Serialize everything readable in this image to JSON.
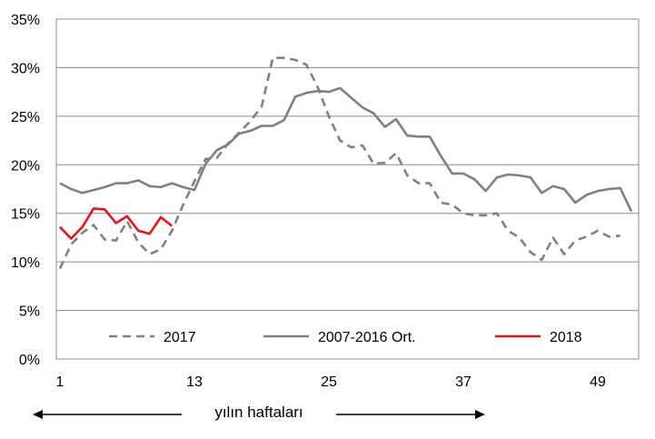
{
  "chart_data": {
    "type": "line",
    "xlabel": "yılın haftaları",
    "ylabel": "",
    "title": "",
    "xticks": [
      1,
      13,
      25,
      37,
      49
    ],
    "xlim": [
      1,
      52
    ],
    "yticks": [
      "0%",
      "5%",
      "10%",
      "15%",
      "20%",
      "25%",
      "30%",
      "35%"
    ],
    "ylim": [
      0,
      35
    ],
    "grid": "horizontal",
    "legend": "bottom-inside",
    "series": [
      {
        "name": "2017",
        "color": "#808080",
        "style": "dashed",
        "x": [
          1,
          2,
          3,
          4,
          5,
          6,
          7,
          8,
          9,
          10,
          11,
          12,
          13,
          14,
          15,
          16,
          17,
          18,
          19,
          20,
          21,
          22,
          23,
          24,
          25,
          26,
          27,
          28,
          29,
          30,
          31,
          32,
          33,
          34,
          35,
          36,
          37,
          38,
          39,
          40,
          41,
          42,
          43,
          44,
          45,
          46,
          47,
          48,
          49,
          50,
          51,
          52
        ],
        "values": [
          9.3,
          11.8,
          13.0,
          13.8,
          12.3,
          12.2,
          14.2,
          12.0,
          10.8,
          11.3,
          13.2,
          15.9,
          18.3,
          20.6,
          20.7,
          22.2,
          23.3,
          24.5,
          26.0,
          31.0,
          31.0,
          30.8,
          30.3,
          28.0,
          25.0,
          22.5,
          21.8,
          22.0,
          20.1,
          20.2,
          21.2,
          18.9,
          18.1,
          18.1,
          16.1,
          15.9,
          15.0,
          14.8,
          14.8,
          15.0,
          13.2,
          12.5,
          11.0,
          10.2,
          12.5,
          10.8,
          12.2,
          12.6,
          13.2,
          12.6,
          12.7,
          null
        ]
      },
      {
        "name": "2007-2016 Ort.",
        "color": "#808080",
        "style": "solid",
        "x": [
          1,
          2,
          3,
          4,
          5,
          6,
          7,
          8,
          9,
          10,
          11,
          12,
          13,
          14,
          15,
          16,
          17,
          18,
          19,
          20,
          21,
          22,
          23,
          24,
          25,
          26,
          27,
          28,
          29,
          30,
          31,
          32,
          33,
          34,
          35,
          36,
          37,
          38,
          39,
          40,
          41,
          42,
          43,
          44,
          45,
          46,
          47,
          48,
          49,
          50,
          51,
          52
        ],
        "values": [
          18.1,
          17.5,
          17.1,
          17.4,
          17.7,
          18.1,
          18.1,
          18.4,
          17.8,
          17.7,
          18.1,
          17.7,
          17.4,
          20.1,
          21.5,
          22.1,
          23.2,
          23.5,
          24.0,
          24.0,
          24.6,
          27.0,
          27.4,
          27.6,
          27.5,
          27.9,
          26.9,
          25.9,
          25.3,
          23.9,
          24.7,
          23.0,
          22.9,
          22.9,
          20.9,
          19.1,
          19.1,
          18.5,
          17.3,
          18.7,
          19.0,
          18.9,
          18.7,
          17.1,
          17.8,
          17.5,
          16.1,
          16.9,
          17.3,
          17.5,
          17.6,
          15.2
        ]
      },
      {
        "name": "2018",
        "color": "#e8131b",
        "style": "solid",
        "x": [
          1,
          2,
          3,
          4,
          5,
          6,
          7,
          8,
          9,
          10,
          11,
          12
        ],
        "values": [
          13.6,
          12.4,
          13.6,
          15.5,
          15.4,
          14.0,
          14.7,
          13.2,
          12.9,
          14.6,
          13.7,
          null
        ]
      }
    ]
  }
}
